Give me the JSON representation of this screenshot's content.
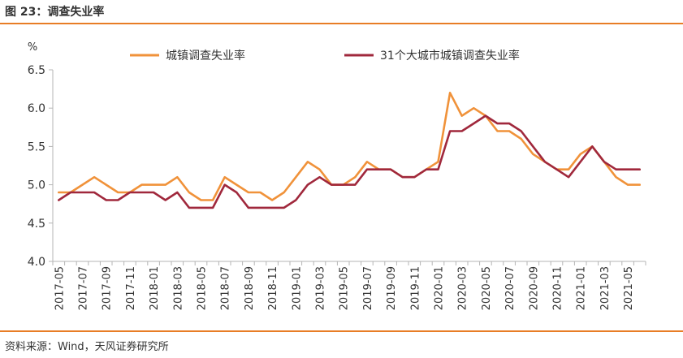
{
  "figure_title": "图 23：调查失业率",
  "source": "资料来源：Wind，天风证券研究所",
  "colors": {
    "urban": "#f0923a",
    "cities31": "#a0283c",
    "accent": "#e87d26",
    "axis": "#b5b5b5"
  },
  "chart_data": {
    "type": "line",
    "unit_label": "%",
    "ylim": [
      4.0,
      6.5
    ],
    "yticks": [
      "4.0",
      "4.5",
      "5.0",
      "5.5",
      "6.0",
      "6.5"
    ],
    "legend_position": "top",
    "x": [
      "2017-05",
      "2017-06",
      "2017-07",
      "2017-08",
      "2017-09",
      "2017-10",
      "2017-11",
      "2017-12",
      "2018-01",
      "2018-02",
      "2018-03",
      "2018-04",
      "2018-05",
      "2018-06",
      "2018-07",
      "2018-08",
      "2018-09",
      "2018-10",
      "2018-11",
      "2018-12",
      "2019-01",
      "2019-02",
      "2019-03",
      "2019-04",
      "2019-05",
      "2019-06",
      "2019-07",
      "2019-08",
      "2019-09",
      "2019-10",
      "2019-11",
      "2019-12",
      "2020-01",
      "2020-02",
      "2020-03",
      "2020-04",
      "2020-05",
      "2020-06",
      "2020-07",
      "2020-08",
      "2020-09",
      "2020-10",
      "2020-11",
      "2020-12",
      "2021-01",
      "2021-02",
      "2021-03",
      "2021-04",
      "2021-05",
      "2021-06"
    ],
    "xtick_labels": [
      "2017-05",
      "2017-07",
      "2017-09",
      "2017-11",
      "2018-01",
      "2018-03",
      "2018-05",
      "2018-07",
      "2018-09",
      "2018-11",
      "2019-01",
      "2019-03",
      "2019-05",
      "2019-07",
      "2019-09",
      "2019-11",
      "2020-01",
      "2020-03",
      "2020-05",
      "2020-07",
      "2020-09",
      "2020-11",
      "2021-01",
      "2021-03",
      "2021-05"
    ],
    "series": [
      {
        "name": "城镇调查失业率",
        "values": [
          4.9,
          4.9,
          5.0,
          5.1,
          5.0,
          4.9,
          4.9,
          5.0,
          5.0,
          5.0,
          5.1,
          4.9,
          4.8,
          4.8,
          5.1,
          5.0,
          4.9,
          4.9,
          4.8,
          4.9,
          5.1,
          5.3,
          5.2,
          5.0,
          5.0,
          5.1,
          5.3,
          5.2,
          5.2,
          5.1,
          5.1,
          5.2,
          5.3,
          6.2,
          5.9,
          6.0,
          5.9,
          5.7,
          5.7,
          5.6,
          5.4,
          5.3,
          5.2,
          5.2,
          5.4,
          5.5,
          5.3,
          5.1,
          5.0,
          5.0
        ]
      },
      {
        "name": "31个大城市城镇调查失业率",
        "values": [
          4.8,
          4.9,
          4.9,
          4.9,
          4.8,
          4.8,
          4.9,
          4.9,
          4.9,
          4.8,
          4.9,
          4.7,
          4.7,
          4.7,
          5.0,
          4.9,
          4.7,
          4.7,
          4.7,
          4.7,
          4.8,
          5.0,
          5.1,
          5.0,
          5.0,
          5.0,
          5.2,
          5.2,
          5.2,
          5.1,
          5.1,
          5.2,
          5.2,
          5.7,
          5.7,
          5.8,
          5.9,
          5.8,
          5.8,
          5.7,
          5.5,
          5.3,
          5.2,
          5.1,
          5.3,
          5.5,
          5.3,
          5.2,
          5.2,
          5.2
        ]
      }
    ]
  }
}
